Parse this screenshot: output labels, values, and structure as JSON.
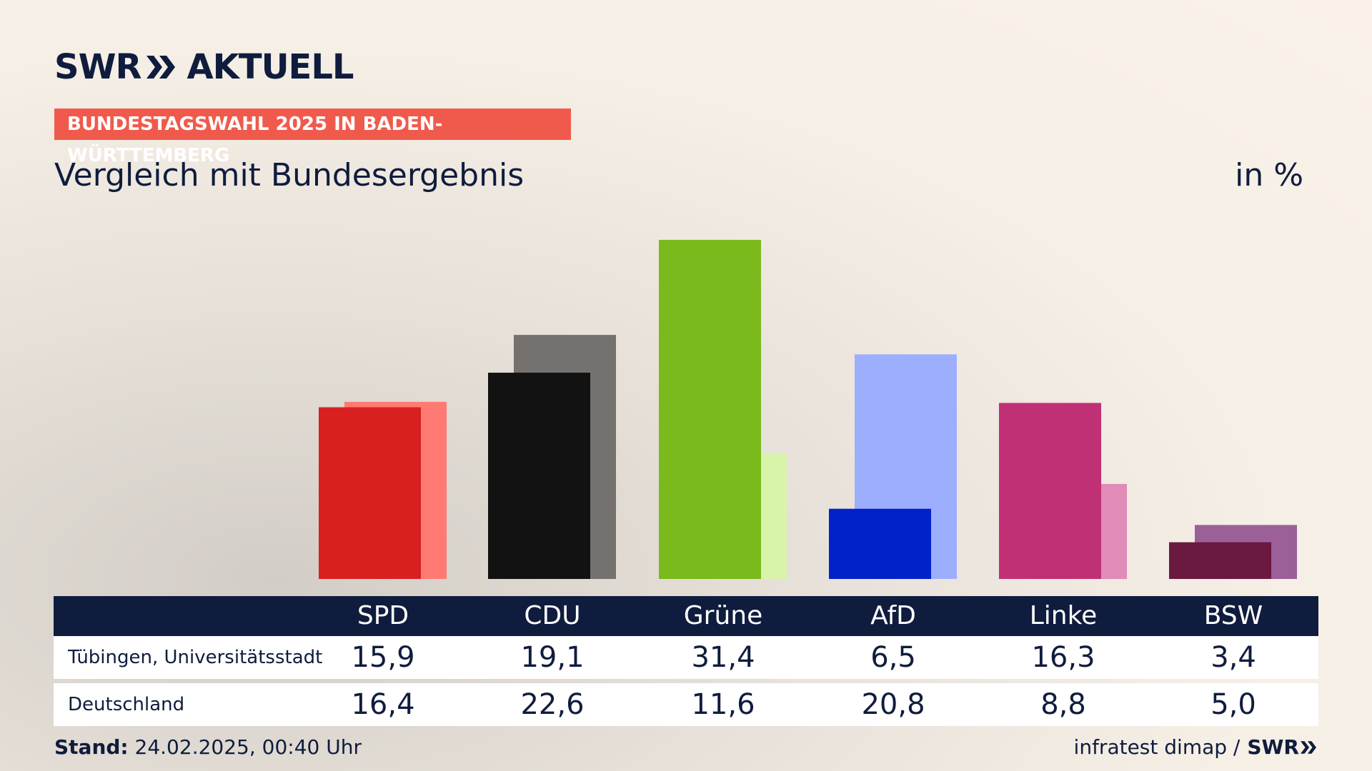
{
  "header": {
    "brand": "SWR",
    "brand_product": "AKTUELL",
    "banner": "BUNDESTAGSWAHL 2025 IN BADEN-WÜRTTEMBERG",
    "subtitle": "Vergleich mit Bundesergebnis",
    "unit": "in %"
  },
  "table": {
    "row_labels": [
      "Tübingen, Universitätsstadt",
      "Deutschland"
    ],
    "rows": [
      [
        "15,9",
        "19,1",
        "31,4",
        "6,5",
        "16,3",
        "3,4"
      ],
      [
        "16,4",
        "22,6",
        "11,6",
        "20,8",
        "8,8",
        "5,0"
      ]
    ]
  },
  "footer": {
    "stand_label": "Stand:",
    "stand_value": "24.02.2025, 00:40 Uhr",
    "source": "infratest dimap /",
    "source_brand": "SWR"
  },
  "colors": {
    "SPD": {
      "local": "#d82020",
      "national": "#ff7a73"
    },
    "CDU": {
      "local": "#121212",
      "national": "#74716f"
    },
    "Grüne": {
      "local": "#7aba1c",
      "national": "#d8f4ab"
    },
    "AfD": {
      "local": "#0022c8",
      "national": "#9eaeff"
    },
    "Linke": {
      "local": "#bf3174",
      "national": "#e08bb8"
    },
    "BSW": {
      "local": "#6a1941",
      "national": "#9c6098"
    }
  },
  "chart_data": {
    "type": "bar",
    "categories": [
      "SPD",
      "CDU",
      "Grüne",
      "AfD",
      "Linke",
      "BSW"
    ],
    "series": [
      {
        "name": "Tübingen, Universitätsstadt",
        "values": [
          15.9,
          19.1,
          31.4,
          6.5,
          16.3,
          3.4
        ]
      },
      {
        "name": "Deutschland",
        "values": [
          16.4,
          22.6,
          11.6,
          20.8,
          8.8,
          5.0
        ]
      }
    ],
    "ylim": [
      0,
      33
    ]
  }
}
